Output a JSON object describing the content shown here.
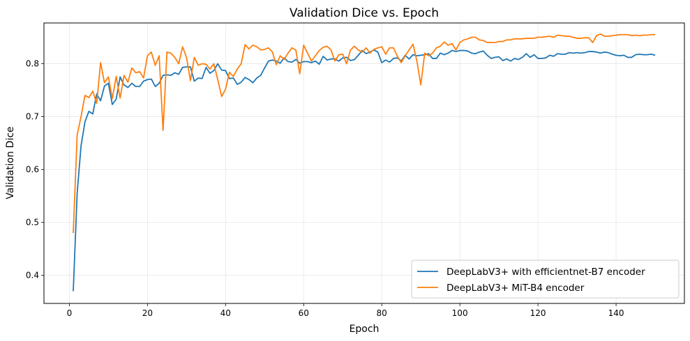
{
  "chart_data": {
    "type": "line",
    "title": "Validation Dice vs. Epoch",
    "xlabel": "Epoch",
    "ylabel": "Validation Dice",
    "xlim": [
      -6.5,
      157.5
    ],
    "ylim": [
      0.347,
      0.877
    ],
    "xticks": [
      0,
      20,
      40,
      60,
      80,
      100,
      120,
      140
    ],
    "yticks": [
      0.4,
      0.5,
      0.6,
      0.7,
      0.8
    ],
    "ytick_labels": [
      "0.4",
      "0.5",
      "0.6",
      "0.7",
      "0.8"
    ],
    "grid": true,
    "legend_position": "lower-right",
    "series": [
      {
        "name": "DeepLabV3+ with efficientnet-B7 encoder",
        "color": "#1f77b4",
        "x": [
          1,
          2,
          3,
          4,
          5,
          6,
          7,
          8,
          9,
          10,
          11,
          12,
          13,
          14,
          15,
          16,
          17,
          18,
          19,
          20,
          21,
          22,
          23,
          24,
          25,
          26,
          27,
          28,
          29,
          30,
          31,
          32,
          33,
          34,
          35,
          36,
          37,
          38,
          39,
          40,
          41,
          42,
          43,
          44,
          45,
          46,
          47,
          48,
          49,
          50,
          51,
          52,
          53,
          54,
          55,
          56,
          57,
          58,
          59,
          60,
          61,
          62,
          63,
          64,
          65,
          66,
          67,
          68,
          69,
          70,
          71,
          72,
          73,
          74,
          75,
          76,
          77,
          78,
          79,
          80,
          81,
          82,
          83,
          84,
          85,
          86,
          87,
          88,
          89,
          90,
          91,
          92,
          93,
          94,
          95,
          96,
          97,
          98,
          99,
          100,
          101,
          102,
          103,
          104,
          105,
          106,
          107,
          108,
          109,
          110,
          111,
          112,
          113,
          114,
          115,
          116,
          117,
          118,
          119,
          120,
          121,
          122,
          123,
          124,
          125,
          126,
          127,
          128,
          129,
          130,
          131,
          132,
          133,
          134,
          135,
          136,
          137,
          138,
          139,
          140,
          141,
          142,
          143,
          144,
          145,
          146,
          147,
          148,
          149,
          150
        ],
        "values": [
          0.37,
          0.555,
          0.645,
          0.69,
          0.71,
          0.705,
          0.743,
          0.73,
          0.758,
          0.763,
          0.723,
          0.733,
          0.775,
          0.76,
          0.755,
          0.763,
          0.757,
          0.757,
          0.767,
          0.77,
          0.771,
          0.757,
          0.763,
          0.778,
          0.779,
          0.778,
          0.783,
          0.78,
          0.793,
          0.794,
          0.794,
          0.767,
          0.773,
          0.772,
          0.793,
          0.782,
          0.787,
          0.8,
          0.788,
          0.787,
          0.772,
          0.773,
          0.761,
          0.765,
          0.774,
          0.77,
          0.764,
          0.773,
          0.778,
          0.792,
          0.805,
          0.807,
          0.805,
          0.801,
          0.811,
          0.804,
          0.803,
          0.808,
          0.801,
          0.804,
          0.804,
          0.802,
          0.805,
          0.799,
          0.814,
          0.807,
          0.809,
          0.809,
          0.805,
          0.811,
          0.812,
          0.806,
          0.808,
          0.816,
          0.825,
          0.819,
          0.822,
          0.826,
          0.822,
          0.802,
          0.807,
          0.803,
          0.81,
          0.811,
          0.805,
          0.816,
          0.809,
          0.817,
          0.815,
          0.816,
          0.817,
          0.819,
          0.81,
          0.81,
          0.82,
          0.817,
          0.82,
          0.825,
          0.823,
          0.825,
          0.825,
          0.824,
          0.82,
          0.819,
          0.822,
          0.824,
          0.816,
          0.81,
          0.812,
          0.813,
          0.806,
          0.809,
          0.805,
          0.81,
          0.808,
          0.812,
          0.819,
          0.812,
          0.817,
          0.81,
          0.81,
          0.811,
          0.816,
          0.814,
          0.819,
          0.818,
          0.818,
          0.821,
          0.82,
          0.821,
          0.82,
          0.821,
          0.823,
          0.823,
          0.822,
          0.82,
          0.822,
          0.821,
          0.818,
          0.816,
          0.815,
          0.816,
          0.812,
          0.812,
          0.817,
          0.818,
          0.817,
          0.817,
          0.818,
          0.816
        ]
      },
      {
        "name": "DeepLabV3+ MiT-B4 encoder",
        "color": "#ff7f0e",
        "x": [
          1,
          2,
          3,
          4,
          5,
          6,
          7,
          8,
          9,
          10,
          11,
          12,
          13,
          14,
          15,
          16,
          17,
          18,
          19,
          20,
          21,
          22,
          23,
          24,
          25,
          26,
          27,
          28,
          29,
          30,
          31,
          32,
          33,
          34,
          35,
          36,
          37,
          38,
          39,
          40,
          41,
          42,
          43,
          44,
          45,
          46,
          47,
          48,
          49,
          50,
          51,
          52,
          53,
          54,
          55,
          56,
          57,
          58,
          59,
          60,
          61,
          62,
          63,
          64,
          65,
          66,
          67,
          68,
          69,
          70,
          71,
          72,
          73,
          74,
          75,
          76,
          77,
          78,
          79,
          80,
          81,
          82,
          83,
          84,
          85,
          86,
          87,
          88,
          89,
          90,
          91,
          92,
          93,
          94,
          95,
          96,
          97,
          98,
          99,
          100,
          101,
          102,
          103,
          104,
          105,
          106,
          107,
          108,
          109,
          110,
          111,
          112,
          113,
          114,
          115,
          116,
          117,
          118,
          119,
          120,
          121,
          122,
          123,
          124,
          125,
          126,
          127,
          128,
          129,
          130,
          131,
          132,
          133,
          134,
          135,
          136,
          137,
          138,
          139,
          140,
          141,
          142,
          143,
          144,
          145,
          146,
          147,
          148,
          149,
          150
        ],
        "values": [
          0.48,
          0.665,
          0.7,
          0.74,
          0.736,
          0.748,
          0.725,
          0.802,
          0.764,
          0.775,
          0.734,
          0.776,
          0.735,
          0.778,
          0.765,
          0.792,
          0.783,
          0.785,
          0.773,
          0.815,
          0.822,
          0.797,
          0.815,
          0.674,
          0.822,
          0.82,
          0.812,
          0.8,
          0.832,
          0.812,
          0.768,
          0.812,
          0.797,
          0.8,
          0.799,
          0.79,
          0.8,
          0.77,
          0.738,
          0.752,
          0.784,
          0.776,
          0.79,
          0.8,
          0.836,
          0.828,
          0.835,
          0.832,
          0.826,
          0.827,
          0.83,
          0.822,
          0.798,
          0.815,
          0.808,
          0.82,
          0.83,
          0.826,
          0.781,
          0.835,
          0.82,
          0.805,
          0.815,
          0.825,
          0.831,
          0.833,
          0.826,
          0.805,
          0.817,
          0.818,
          0.8,
          0.826,
          0.833,
          0.826,
          0.822,
          0.83,
          0.82,
          0.827,
          0.83,
          0.832,
          0.818,
          0.83,
          0.83,
          0.814,
          0.802,
          0.815,
          0.826,
          0.837,
          0.805,
          0.76,
          0.82,
          0.815,
          0.82,
          0.83,
          0.833,
          0.841,
          0.835,
          0.838,
          0.826,
          0.84,
          0.845,
          0.847,
          0.85,
          0.85,
          0.845,
          0.844,
          0.84,
          0.84,
          0.84,
          0.842,
          0.842,
          0.845,
          0.845,
          0.847,
          0.847,
          0.847,
          0.848,
          0.848,
          0.848,
          0.85,
          0.85,
          0.851,
          0.852,
          0.85,
          0.854,
          0.853,
          0.852,
          0.852,
          0.85,
          0.848,
          0.848,
          0.849,
          0.849,
          0.84,
          0.853,
          0.856,
          0.852,
          0.852,
          0.853,
          0.854,
          0.855,
          0.855,
          0.855,
          0.853,
          0.854,
          0.853,
          0.854,
          0.854,
          0.855,
          0.855
        ]
      }
    ]
  }
}
